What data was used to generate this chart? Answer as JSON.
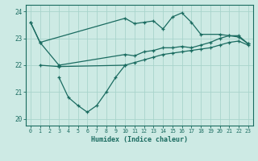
{
  "title": "",
  "xlabel": "Humidex (Indice chaleur)",
  "bg_color": "#cdeae4",
  "grid_color": "#a8d4cc",
  "line_color": "#1a6b60",
  "xlim": [
    -0.5,
    23.5
  ],
  "ylim": [
    19.75,
    24.25
  ],
  "yticks": [
    20,
    21,
    22,
    23,
    24
  ],
  "xticks": [
    0,
    1,
    2,
    3,
    4,
    5,
    6,
    7,
    8,
    9,
    10,
    11,
    12,
    13,
    14,
    15,
    16,
    17,
    18,
    19,
    20,
    21,
    22,
    23
  ],
  "line1_x": [
    0,
    1,
    10,
    11,
    12,
    13,
    14,
    15,
    16,
    17,
    18,
    20,
    21,
    22,
    23
  ],
  "line1_y": [
    23.6,
    22.85,
    23.75,
    23.55,
    23.6,
    23.65,
    23.35,
    23.8,
    23.95,
    23.6,
    23.15,
    23.15,
    23.1,
    23.05,
    22.8
  ],
  "line2_x": [
    0,
    1,
    3,
    10,
    11,
    12,
    13,
    14,
    15,
    16,
    17,
    18,
    19,
    20,
    21,
    22,
    23
  ],
  "line2_y": [
    23.6,
    22.85,
    22.0,
    22.4,
    22.35,
    22.5,
    22.55,
    22.65,
    22.65,
    22.7,
    22.65,
    22.75,
    22.85,
    23.0,
    23.1,
    23.1,
    22.8
  ],
  "line3_x": [
    1,
    3,
    10,
    11,
    12,
    13,
    14,
    15,
    16,
    17,
    18,
    19,
    20,
    21,
    22,
    23
  ],
  "line3_y": [
    22.0,
    21.95,
    22.0,
    22.1,
    22.2,
    22.3,
    22.4,
    22.45,
    22.5,
    22.55,
    22.6,
    22.65,
    22.75,
    22.85,
    22.9,
    22.75
  ],
  "line4_x": [
    3,
    4,
    5,
    6,
    7,
    8,
    9,
    10
  ],
  "line4_y": [
    21.55,
    20.8,
    20.5,
    20.25,
    20.5,
    21.0,
    21.55,
    22.0
  ]
}
